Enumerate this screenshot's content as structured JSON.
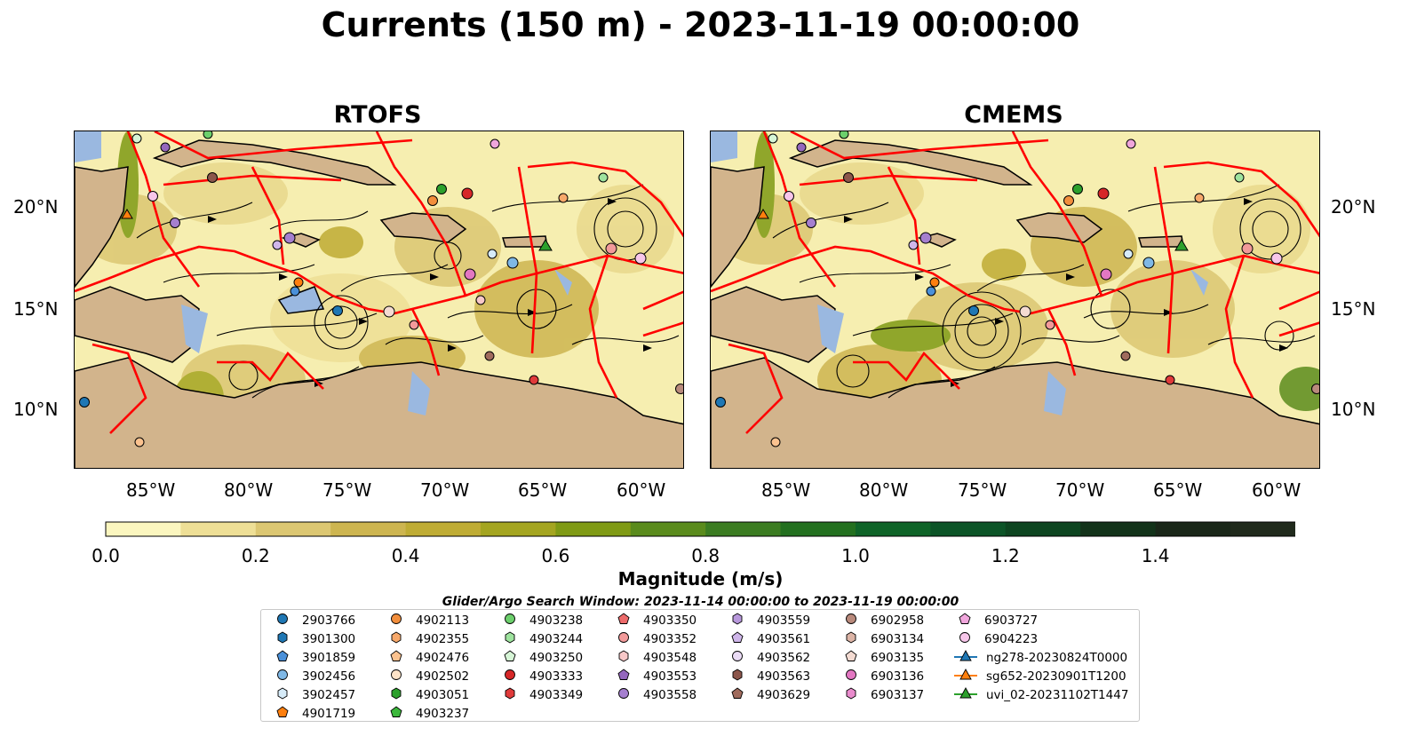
{
  "title": "Currents (150 m) - 2023-11-19 00:00:00",
  "panels": [
    {
      "title": "RTOFS"
    },
    {
      "title": "CMEMS"
    }
  ],
  "axes": {
    "lat_ticks": [
      "20°N",
      "15°N",
      "10°N"
    ],
    "lon_ticks": [
      "85°W",
      "80°W",
      "75°W",
      "70°W",
      "65°W",
      "60°W"
    ]
  },
  "colors": {
    "land": "#d2b48c",
    "shallow_water": "#9ab8e0",
    "eez_lines": "#ff0000",
    "streamlines": "#000000"
  },
  "colorbar": {
    "label": "Magnitude (m/s)",
    "ticks": [
      "0.0",
      "0.2",
      "0.4",
      "0.6",
      "0.8",
      "1.0",
      "1.2",
      "1.4"
    ],
    "colors": [
      "#fbf6bf",
      "#eedf96",
      "#dcc772",
      "#cdb550",
      "#bfac34",
      "#a4a520",
      "#7f9a14",
      "#5a8b1c",
      "#3b7c21",
      "#23701f",
      "#0f6428",
      "#0c5427",
      "#0d4520",
      "#13331a",
      "#1a2719",
      "#202a1c"
    ],
    "extend": "max"
  },
  "search_window": "Glider/Argo Search Window: 2023-11-14 00:00:00 to 2023-11-19 00:00:00",
  "legend": [
    [
      {
        "label": "2903766",
        "marker": "circle",
        "color": "#1f77b4"
      },
      {
        "label": "3901300",
        "marker": "hexagon",
        "color": "#1f77b4"
      },
      {
        "label": "3901859",
        "marker": "pentagon",
        "color": "#4a90d9"
      },
      {
        "label": "3902456",
        "marker": "circle",
        "color": "#7fb8e6"
      },
      {
        "label": "3902457",
        "marker": "hexagon",
        "color": "#d6ebf8"
      },
      {
        "label": "4901719",
        "marker": "pentagon",
        "color": "#ff7f0e"
      }
    ],
    [
      {
        "label": "4902113",
        "marker": "circle",
        "color": "#f28e3c"
      },
      {
        "label": "4902355",
        "marker": "hexagon",
        "color": "#f7a86a"
      },
      {
        "label": "4902476",
        "marker": "pentagon",
        "color": "#fbc28f"
      },
      {
        "label": "4902502",
        "marker": "circle",
        "color": "#fde3c8"
      },
      {
        "label": "4903051",
        "marker": "hexagon",
        "color": "#2ca02c"
      },
      {
        "label": "4903237",
        "marker": "pentagon",
        "color": "#3cb83c"
      }
    ],
    [
      {
        "label": "4903238",
        "marker": "circle",
        "color": "#6ccf6c"
      },
      {
        "label": "4903244",
        "marker": "hexagon",
        "color": "#9ee39e"
      },
      {
        "label": "4903250",
        "marker": "pentagon",
        "color": "#d6f5d6"
      },
      {
        "label": "4903333",
        "marker": "circle",
        "color": "#d62728"
      },
      {
        "label": "4903349",
        "marker": "hexagon",
        "color": "#e03a3a"
      }
    ],
    [
      {
        "label": "4903350",
        "marker": "pentagon",
        "color": "#ec6a6a"
      },
      {
        "label": "4903352",
        "marker": "circle",
        "color": "#f29a9a"
      },
      {
        "label": "4903548",
        "marker": "hexagon",
        "color": "#f8c8c8"
      },
      {
        "label": "4903553",
        "marker": "pentagon",
        "color": "#9467bd"
      },
      {
        "label": "4903558",
        "marker": "circle",
        "color": "#a57fcf"
      }
    ],
    [
      {
        "label": "4903559",
        "marker": "hexagon",
        "color": "#b898dc"
      },
      {
        "label": "4903561",
        "marker": "pentagon",
        "color": "#cfb6ea"
      },
      {
        "label": "4903562",
        "marker": "circle",
        "color": "#ebdcf6"
      },
      {
        "label": "4903563",
        "marker": "hexagon",
        "color": "#8c564b"
      },
      {
        "label": "4903629",
        "marker": "pentagon",
        "color": "#a06b5d"
      }
    ],
    [
      {
        "label": "6902958",
        "marker": "circle",
        "color": "#b98a7c"
      },
      {
        "label": "6903134",
        "marker": "hexagon",
        "color": "#dcb4a6"
      },
      {
        "label": "6903135",
        "marker": "pentagon",
        "color": "#f4dbd2"
      },
      {
        "label": "6903136",
        "marker": "circle",
        "color": "#e377c2"
      },
      {
        "label": "6903137",
        "marker": "hexagon",
        "color": "#e98bcd"
      }
    ],
    [
      {
        "label": "6903727",
        "marker": "pentagon",
        "color": "#f0a6dc"
      },
      {
        "label": "6904223",
        "marker": "circle",
        "color": "#f7c6ea"
      },
      {
        "label": "ng278-20230824T0000",
        "marker": "triangle-line",
        "color": "#1f77b4"
      },
      {
        "label": "sg652-20230901T1200",
        "marker": "triangle-line",
        "color": "#ff7f0e"
      },
      {
        "label": "uvi_02-20231102T1447",
        "marker": "triangle-line",
        "color": "#2ca02c"
      }
    ]
  ]
}
